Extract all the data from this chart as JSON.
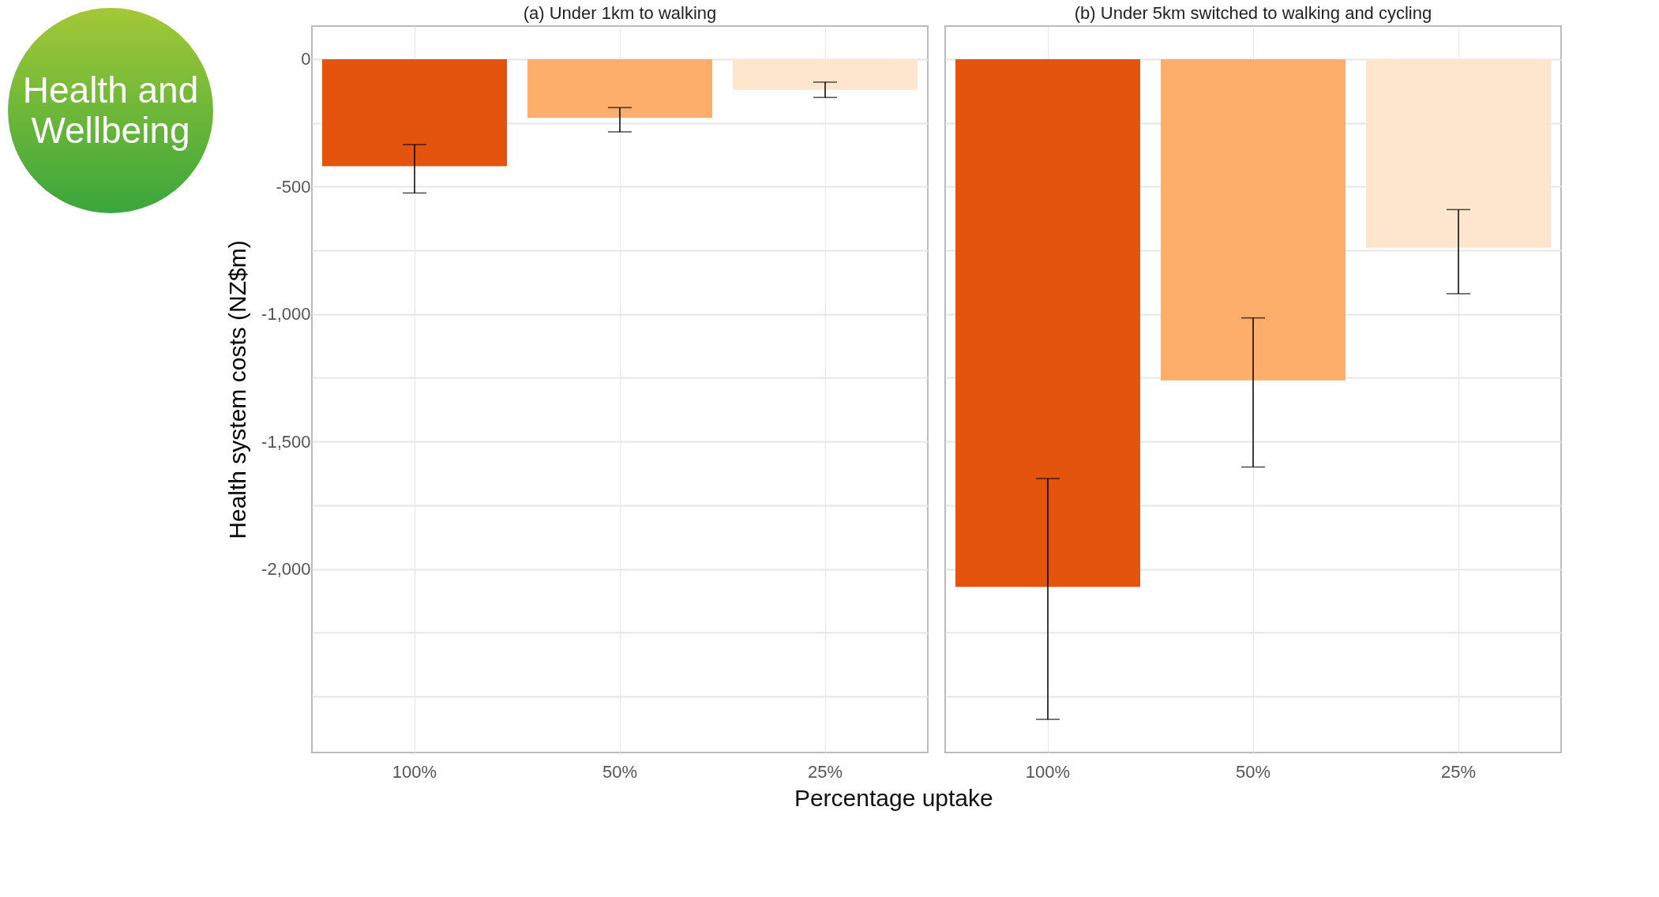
{
  "chart_data": [
    {
      "type": "bar",
      "title": "(a) Under 1km to walking",
      "xlabel": "Percentage uptake",
      "ylabel": "Health system costs (NZ$m)",
      "annotations": [
        "Health and Wellbeing"
      ],
      "categories": [
        "100%",
        "50%",
        "25%"
      ],
      "values": [
        -420,
        -230,
        -120
      ],
      "colors": [
        "#e4540f",
        "#fdae6b",
        "#fee6ce"
      ],
      "errors": [
        [
          -525,
          -335
        ],
        [
          -285,
          -190
        ],
        [
          -150,
          -90
        ]
      ],
      "ylim": [
        -2720,
        130
      ],
      "yticks": [
        0,
        {
          "value": -250,
          "label": null
        },
        -500,
        {
          "value": -750,
          "label": null
        },
        {
          "value": -1000,
          "label": "-1,000"
        },
        {
          "value": -1250,
          "label": null
        },
        {
          "value": -1500,
          "label": "-1,500"
        },
        {
          "value": -1750,
          "label": null
        },
        {
          "value": -2000,
          "label": "-2,000"
        },
        {
          "value": -2250,
          "label": null
        },
        {
          "value": -2500,
          "label": null
        }
      ],
      "grid": true
    },
    {
      "type": "bar",
      "title": "(b) Under 5km switched to walking and cycling",
      "categories": [
        "100%",
        "50%",
        "25%"
      ],
      "values": [
        -2070,
        -1260,
        -740
      ],
      "colors": [
        "#e4540f",
        "#fdae6b",
        "#fee6ce"
      ],
      "errors": [
        [
          -2590,
          -1645
        ],
        [
          -1600,
          -1015
        ],
        [
          -920,
          -590
        ]
      ],
      "ylim": [
        -2720,
        130
      ],
      "yticks": [
        {
          "value": 0,
          "label": null
        },
        {
          "value": -250,
          "label": null
        },
        {
          "value": -500,
          "label": null
        },
        {
          "value": -750,
          "label": null
        },
        {
          "value": -1000,
          "label": null
        },
        {
          "value": -1250,
          "label": null
        },
        {
          "value": -1500,
          "label": null
        },
        {
          "value": -1750,
          "label": null
        },
        {
          "value": -2000,
          "label": null
        },
        {
          "value": -2250,
          "label": null
        },
        {
          "value": -2500,
          "label": null
        }
      ],
      "grid": true,
      "tick_labels": "x"
    }
  ]
}
